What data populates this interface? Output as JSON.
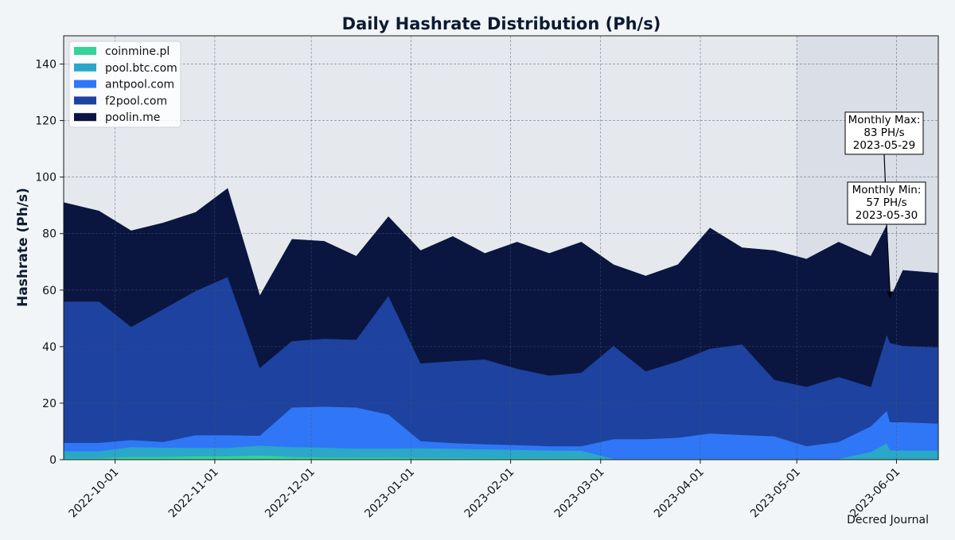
{
  "chart_data": {
    "type": "area",
    "stacked": true,
    "title": "Daily Hashrate Distribution (Ph/s)",
    "xlabel": "",
    "ylabel": "Hashrate (Ph/s)",
    "xlim": [
      "2022-09-15",
      "2023-06-14"
    ],
    "ylim": [
      0,
      150
    ],
    "yticks": [
      0,
      20,
      40,
      60,
      80,
      100,
      120,
      140
    ],
    "xticks": [
      "2022-10-01",
      "2022-11-01",
      "2022-12-01",
      "2023-01-01",
      "2023-02-01",
      "2023-03-01",
      "2023-04-01",
      "2023-05-01",
      "2023-06-01"
    ],
    "grid": true,
    "legend_position": "top-left",
    "highlight_range": [
      "2023-05-01",
      "2023-06-14"
    ],
    "x": [
      "2022-09-15",
      "2022-09-26",
      "2022-10-06",
      "2022-10-16",
      "2022-10-26",
      "2022-11-05",
      "2022-11-15",
      "2022-11-25",
      "2022-12-05",
      "2022-12-15",
      "2022-12-25",
      "2023-01-04",
      "2023-01-14",
      "2023-01-24",
      "2023-02-03",
      "2023-02-13",
      "2023-02-23",
      "2023-03-05",
      "2023-03-15",
      "2023-03-25",
      "2023-04-04",
      "2023-04-14",
      "2023-04-24",
      "2023-05-04",
      "2023-05-14",
      "2023-05-24",
      "2023-05-29",
      "2023-05-30",
      "2023-06-03",
      "2023-06-14"
    ],
    "series": [
      {
        "name": "coinmine.pl",
        "color": "#34d399",
        "values": [
          0.5,
          0.5,
          1.0,
          1.0,
          1.2,
          1.2,
          1.5,
          1.0,
          0.8,
          0.8,
          0.8,
          0.6,
          0.6,
          0.5,
          0.5,
          0.5,
          0.5,
          0.3,
          0.3,
          0.3,
          0.3,
          0.3,
          0.3,
          0.3,
          0.3,
          0.3,
          0.3,
          0.3,
          0.3,
          0.3
        ]
      },
      {
        "name": "pool.btc.com",
        "color": "#2aa7c9",
        "values": [
          2.5,
          2.5,
          3.5,
          3.3,
          3.0,
          3.0,
          3.5,
          3.5,
          3.5,
          3.2,
          3.2,
          3.5,
          3.3,
          3.2,
          3.0,
          2.8,
          2.7,
          0.0,
          0.0,
          0.0,
          0.0,
          0.0,
          0.0,
          0.0,
          0.0,
          2.5,
          5.5,
          3.0,
          3.0,
          3.0
        ]
      },
      {
        "name": "antpool.com",
        "color": "#2f77f6",
        "values": [
          3.0,
          3.0,
          2.5,
          2.0,
          4.5,
          4.5,
          3.5,
          14.0,
          14.5,
          14.5,
          12.0,
          2.5,
          2.0,
          1.8,
          1.7,
          1.5,
          1.6,
          7.0,
          7.0,
          7.5,
          9.0,
          8.5,
          8.0,
          4.5,
          6.0,
          9.0,
          11.5,
          10.0,
          10.0,
          9.5
        ]
      },
      {
        "name": "f2pool.com",
        "color": "#1d42a0",
        "values": [
          50.0,
          50.0,
          40.0,
          47.0,
          51.0,
          56.0,
          24.0,
          23.5,
          24.0,
          24.0,
          42.0,
          27.5,
          29.0,
          30.0,
          27.0,
          25.0,
          26.0,
          33.0,
          24.0,
          27.0,
          30.0,
          32.0,
          20.0,
          21.0,
          23.0,
          14.0,
          27.0,
          28.0,
          27.0,
          27.0
        ]
      },
      {
        "name": "poolin.me",
        "color": "#0a1640",
        "values": [
          35.0,
          32.0,
          34.0,
          30.5,
          27.8,
          31.3,
          25.5,
          36.0,
          34.5,
          29.5,
          28.0,
          39.9,
          44.1,
          37.5,
          44.8,
          43.2,
          46.2,
          28.7,
          33.7,
          34.2,
          42.7,
          34.2,
          45.7,
          45.2,
          47.7,
          46.2,
          38.7,
          15.7,
          26.7,
          26.2
        ]
      }
    ],
    "annotations": [
      {
        "label_lines": [
          "Monthly Max:",
          "83 PH/s",
          "2023-05-29"
        ],
        "x": "2023-05-29",
        "y": 83
      },
      {
        "label_lines": [
          "Monthly Min:",
          "57 PH/s",
          "2023-05-30"
        ],
        "x": "2023-05-30",
        "y": 57
      }
    ]
  },
  "footer": {
    "credit": "Decred Journal"
  },
  "colors": {
    "page_bg": "#f2f5f7",
    "plot_bg": "#e5e9ed",
    "highlight_bg": "#dadee6",
    "grid": "#4a5568",
    "title": "#0c1a33"
  }
}
